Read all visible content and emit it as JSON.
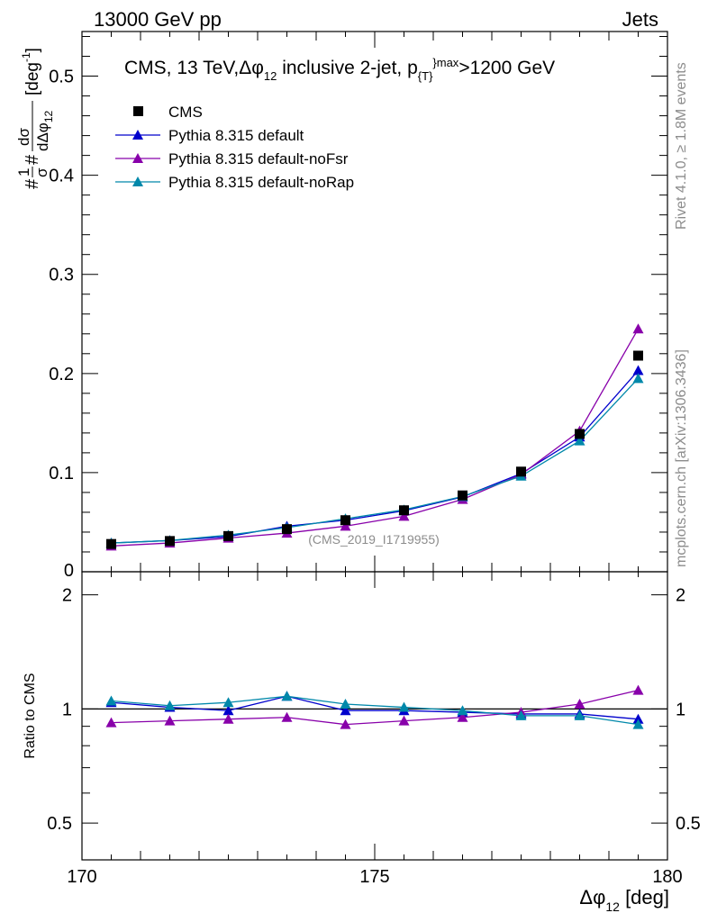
{
  "header": {
    "left": "13000 GeV pp",
    "right": "Jets"
  },
  "side": {
    "rivet": "Rivet 4.1.0, ≥ 1.8M events",
    "site": "mcplots.cern.ch [arXiv:1306.3436]"
  },
  "chart_data": {
    "type": "line",
    "title": "CMS, 13 TeV,Δφ_12 inclusive 2-jet, p_T^max>1200 GeV",
    "title_parts": {
      "a": "CMS, 13 TeV,",
      "b": "Δφ",
      "b_sub": "12",
      "c": " inclusive 2-jet,  p",
      "c_sub": "{T}",
      "c_sup": "}max",
      "d": ">1200 GeV"
    },
    "watermark": "(CMS_2019_I1719955)",
    "xlabel": {
      "main": "Δφ",
      "sub": "12",
      "unit": " [deg]"
    },
    "ylabel_upper": "#frac{1}{#sigma}#frac{dσ}{dΔφ_12} [deg^-1]",
    "ylabel_upper_parts": {
      "hash1": "#",
      "one": "1",
      "sigma": "σ",
      "hash2": "#",
      "dsigma": "dσ",
      "dphi": "dΔφ",
      "dphi_sub": "12",
      "unit": "[deg",
      "unit_sup": "-1",
      "unit_end": "]"
    },
    "ylabel_lower": "Ratio to CMS",
    "xlim": [
      170,
      180
    ],
    "ylim_upper": [
      0,
      0.545
    ],
    "ylim_lower_log": [
      0.4,
      2.3
    ],
    "x_ticks": [
      "170",
      "175",
      "180"
    ],
    "x_tick_values": [
      170,
      175,
      180
    ],
    "y_ticks_upper": [
      "0",
      "0.1",
      "0.2",
      "0.3",
      "0.4",
      "0.5"
    ],
    "y_tick_values_upper": [
      0,
      0.1,
      0.2,
      0.3,
      0.4,
      0.5
    ],
    "y_ticks_lower": [
      "0.5",
      "1",
      "2"
    ],
    "y_tick_values_lower": [
      0.5,
      1,
      2
    ],
    "x": [
      170.5,
      171.5,
      172.5,
      173.5,
      174.5,
      175.5,
      176.5,
      177.5,
      178.5,
      179.5
    ],
    "legend": [
      "CMS",
      "Pythia 8.315 default",
      "Pythia 8.315 default-noFsr",
      "Pythia 8.315 default-noRap"
    ],
    "series": [
      {
        "name": "CMS",
        "color": "#000000",
        "marker": "square",
        "values": [
          0.028,
          0.031,
          0.036,
          0.043,
          0.052,
          0.062,
          0.077,
          0.101,
          0.139,
          0.218
        ]
      },
      {
        "name": "Pythia 8.315 default",
        "color": "#0000cc",
        "marker": "triangle",
        "values": [
          0.029,
          0.0315,
          0.0355,
          0.046,
          0.052,
          0.0615,
          0.0755,
          0.099,
          0.136,
          0.203
        ],
        "ratio": [
          1.04,
          1.01,
          0.99,
          1.08,
          0.99,
          0.99,
          0.98,
          0.97,
          0.97,
          0.94
        ]
      },
      {
        "name": "Pythia 8.315 default-noFsr",
        "color": "#8800aa",
        "marker": "triangle",
        "values": [
          0.026,
          0.029,
          0.034,
          0.039,
          0.046,
          0.056,
          0.073,
          0.098,
          0.142,
          0.245
        ],
        "ratio": [
          0.92,
          0.93,
          0.94,
          0.95,
          0.91,
          0.93,
          0.95,
          0.98,
          1.03,
          1.12
        ]
      },
      {
        "name": "Pythia 8.315 default-noRap",
        "color": "#0088aa",
        "marker": "triangle",
        "values": [
          0.029,
          0.0315,
          0.037,
          0.0445,
          0.0535,
          0.0625,
          0.076,
          0.0965,
          0.132,
          0.195
        ],
        "ratio": [
          1.05,
          1.02,
          1.04,
          1.08,
          1.03,
          1.01,
          0.99,
          0.96,
          0.96,
          0.91
        ]
      }
    ]
  }
}
